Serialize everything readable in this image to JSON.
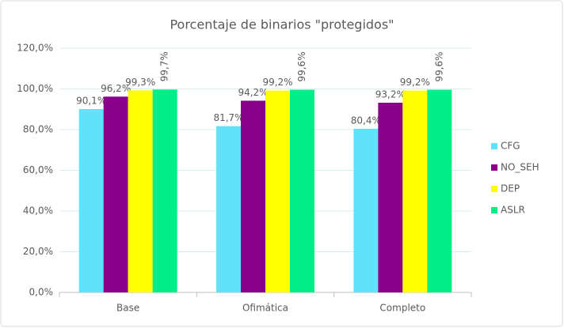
{
  "chart_data": {
    "type": "bar",
    "title": "Porcentaje de binarios \"protegidos\"",
    "categories": [
      "Base",
      "Ofimática",
      "Completo"
    ],
    "series": [
      {
        "name": "CFG",
        "color": "#5fe3fa",
        "values": [
          90.1,
          81.7,
          80.4
        ],
        "value_labels": [
          "90,1%",
          "81,7%",
          "80,4%"
        ]
      },
      {
        "name": "NO_SEH",
        "color": "#8b008b",
        "values": [
          96.2,
          94.2,
          93.2
        ],
        "value_labels": [
          "96,2%",
          "94,2%",
          "93,2%"
        ]
      },
      {
        "name": "DEP",
        "color": "#ffff00",
        "values": [
          99.3,
          99.2,
          99.2
        ],
        "value_labels": [
          "99,3%",
          "99,2%",
          "99,2%"
        ]
      },
      {
        "name": "ASLR",
        "color": "#00ee88",
        "values": [
          99.7,
          99.6,
          99.6
        ],
        "value_labels": [
          "99,7%",
          "99,6%",
          "99,6%"
        ]
      }
    ],
    "ylim": [
      0,
      120
    ],
    "yticks": [
      {
        "value": 0,
        "label": "0,0%"
      },
      {
        "value": 20,
        "label": "20,0%"
      },
      {
        "value": 40,
        "label": "40,0%"
      },
      {
        "value": 60,
        "label": "60,0%"
      },
      {
        "value": 80,
        "label": "80,0%"
      },
      {
        "value": 100,
        "label": "100,0%"
      },
      {
        "value": 120,
        "label": "120,0%"
      }
    ],
    "grid": true,
    "legend": "right"
  }
}
